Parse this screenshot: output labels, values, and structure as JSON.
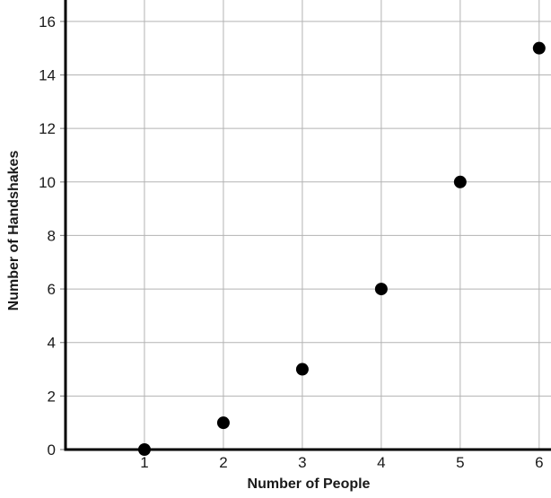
{
  "chart_data": {
    "type": "scatter",
    "title": "",
    "xlabel": "Number of People",
    "ylabel": "Number of Handshakes",
    "x": [
      1,
      2,
      3,
      4,
      5,
      6
    ],
    "y": [
      0,
      1,
      3,
      6,
      10,
      15
    ],
    "x_ticks": [
      1,
      2,
      3,
      4,
      5,
      6
    ],
    "y_ticks": [
      0,
      2,
      4,
      6,
      8,
      10,
      12,
      14,
      16
    ],
    "xlim": [
      0,
      6.15
    ],
    "ylim": [
      0,
      16.8
    ],
    "grid": true,
    "legend": "none",
    "point_color": "#000000",
    "axis_color": "#000000",
    "grid_color": "#b3b3b3",
    "tick_color": "#8c8c8c",
    "text_color": "#1a1a1a"
  }
}
